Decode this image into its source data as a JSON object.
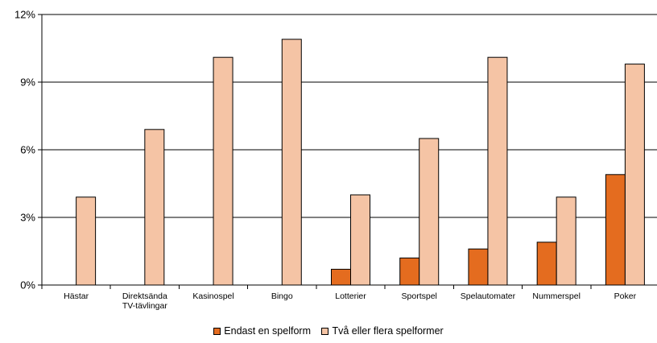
{
  "chart_data": {
    "type": "bar",
    "categories": [
      [
        "Hästar"
      ],
      [
        "Direktsända",
        "TV-tävlingar"
      ],
      [
        "Kasinospel"
      ],
      [
        "Bingo"
      ],
      [
        "Lotterier"
      ],
      [
        "Sportspel"
      ],
      [
        "Spelautomater"
      ],
      [
        "Nummerspel"
      ],
      [
        "Poker"
      ]
    ],
    "series": [
      {
        "name": "Endast en spelform",
        "color": "#e46c1f",
        "values": [
          0,
          0,
          0,
          0,
          0.7,
          1.2,
          1.6,
          1.9,
          4.9
        ]
      },
      {
        "name": "Två eller flera spelformer",
        "color": "#f5c4a5",
        "values": [
          3.9,
          6.9,
          10.1,
          10.9,
          4.0,
          6.5,
          10.1,
          3.9,
          9.8
        ]
      }
    ],
    "yticks": [
      "0%",
      "3%",
      "6%",
      "9%",
      "12%"
    ],
    "ylim": [
      0,
      12
    ],
    "grid": true,
    "legend_position": "bottom"
  }
}
